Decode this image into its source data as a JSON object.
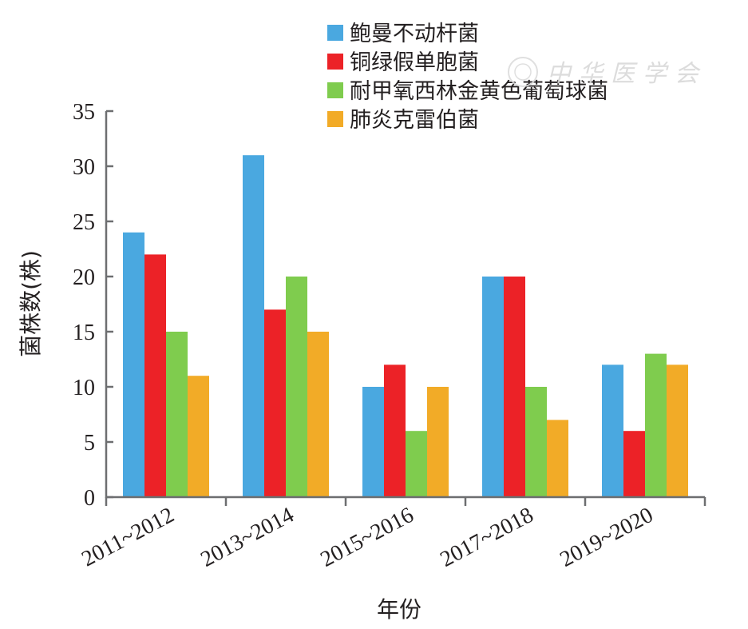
{
  "chart_data": {
    "type": "bar",
    "title": "",
    "xlabel": "年份",
    "ylabel": "菌株数(株)",
    "ylim": [
      0,
      35
    ],
    "yticks": [
      0,
      5,
      10,
      15,
      20,
      25,
      30,
      35
    ],
    "categories": [
      "2011~2012",
      "2013~2014",
      "2015~2016",
      "2017~2018",
      "2019~2020"
    ],
    "series": [
      {
        "name": "鲍曼不动杆菌",
        "color": "#4aa8e0",
        "values": [
          24,
          31,
          10,
          20,
          12
        ]
      },
      {
        "name": "铜绿假单胞菌",
        "color": "#ec2227",
        "values": [
          22,
          17,
          12,
          20,
          6
        ]
      },
      {
        "name": "耐甲氧西林金黄色葡萄球菌",
        "color": "#7fcc4e",
        "values": [
          15,
          20,
          6,
          10,
          13
        ]
      },
      {
        "name": "肺炎克雷伯菌",
        "color": "#f2ab27",
        "values": [
          11,
          15,
          10,
          7,
          12
        ]
      }
    ],
    "legend_position": "top-right",
    "grid": false
  },
  "watermark": {
    "text": "中华医学会"
  }
}
